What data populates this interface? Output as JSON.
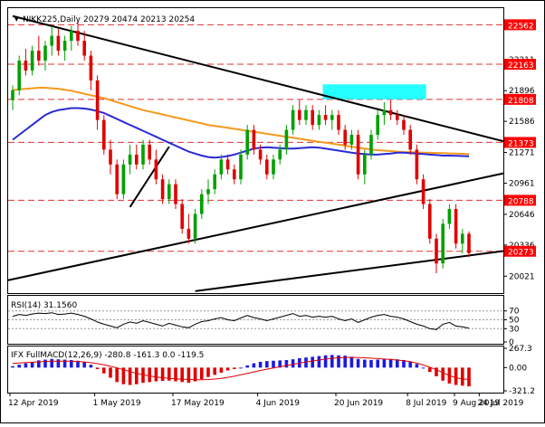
{
  "chart_data": {
    "type": "candlestick",
    "instrument_label": "NIKK225,Daily",
    "ohlc_label": "20279 20474 20213 20254",
    "price_axis_ticks": [
      22562,
      22211,
      21896,
      21586,
      21271,
      20961,
      20646,
      20336,
      20021
    ],
    "price_range": [
      19850,
      22730
    ],
    "highlighted_levels": [
      {
        "value": 22562,
        "label": "22562"
      },
      {
        "value": 22163,
        "label": "22163"
      },
      {
        "value": 21808,
        "label": "21808"
      },
      {
        "value": 21373,
        "label": "21373"
      },
      {
        "value": 20788,
        "label": "20788"
      },
      {
        "value": 20273,
        "label": "20273"
      }
    ],
    "x_labels": [
      "12 Apr 2019",
      "1 May 2019",
      "17 May 2019",
      "4 Jun 2019",
      "20 Jun 2019",
      "8 Jul 2019",
      "24 Jul 2019",
      "9 Aug 2019"
    ],
    "candles": [
      [
        21800,
        21950,
        21700,
        21900
      ],
      [
        21900,
        22250,
        21850,
        22200
      ],
      [
        22200,
        22320,
        22050,
        22100
      ],
      [
        22100,
        22350,
        22050,
        22300
      ],
      [
        22300,
        22450,
        22150,
        22200
      ],
      [
        22200,
        22400,
        22100,
        22350
      ],
      [
        22350,
        22550,
        22250,
        22450
      ],
      [
        22450,
        22520,
        22250,
        22300
      ],
      [
        22300,
        22450,
        22200,
        22400
      ],
      [
        22400,
        22550,
        22300,
        22500
      ],
      [
        22500,
        22600,
        22350,
        22400
      ],
      [
        22400,
        22500,
        22200,
        22250
      ],
      [
        22250,
        22300,
        21900,
        22000
      ],
      [
        22000,
        22050,
        21500,
        21600
      ],
      [
        21600,
        21650,
        21250,
        21300
      ],
      [
        21300,
        21400,
        21050,
        21150
      ],
      [
        21150,
        21200,
        20800,
        20850
      ],
      [
        20850,
        21200,
        20800,
        21150
      ],
      [
        21150,
        21350,
        21050,
        21250
      ],
      [
        21250,
        21350,
        21100,
        21150
      ],
      [
        21150,
        21400,
        21100,
        21350
      ],
      [
        21350,
        21400,
        21150,
        21200
      ],
      [
        21200,
        21300,
        20950,
        21000
      ],
      [
        21000,
        21050,
        20750,
        20800
      ],
      [
        20800,
        21000,
        20750,
        20950
      ],
      [
        20950,
        21000,
        20700,
        20750
      ],
      [
        20750,
        20800,
        20450,
        20500
      ],
      [
        20500,
        20650,
        20350,
        20400
      ],
      [
        20400,
        20700,
        20350,
        20650
      ],
      [
        20650,
        20900,
        20600,
        20850
      ],
      [
        20850,
        21000,
        20750,
        20900
      ],
      [
        20900,
        21100,
        20850,
        21050
      ],
      [
        21050,
        21250,
        21000,
        21200
      ],
      [
        21200,
        21250,
        21050,
        21100
      ],
      [
        21100,
        21150,
        20950,
        21000
      ],
      [
        21000,
        21300,
        20950,
        21250
      ],
      [
        21250,
        21550,
        21200,
        21500
      ],
      [
        21500,
        21550,
        21250,
        21300
      ],
      [
        21300,
        21350,
        21150,
        21200
      ],
      [
        21200,
        21250,
        21000,
        21050
      ],
      [
        21050,
        21250,
        21000,
        21200
      ],
      [
        21200,
        21350,
        21150,
        21300
      ],
      [
        21300,
        21550,
        21250,
        21500
      ],
      [
        21500,
        21750,
        21450,
        21700
      ],
      [
        21700,
        21800,
        21550,
        21600
      ],
      [
        21600,
        21750,
        21550,
        21700
      ],
      [
        21700,
        21750,
        21500,
        21550
      ],
      [
        21550,
        21700,
        21500,
        21650
      ],
      [
        21650,
        21750,
        21550,
        21600
      ],
      [
        21600,
        21700,
        21500,
        21650
      ],
      [
        21650,
        21700,
        21450,
        21500
      ],
      [
        21500,
        21550,
        21300,
        21350
      ],
      [
        21350,
        21500,
        21300,
        21450
      ],
      [
        21450,
        21500,
        21000,
        21050
      ],
      [
        21050,
        21300,
        20950,
        21250
      ],
      [
        21250,
        21500,
        21200,
        21450
      ],
      [
        21450,
        21700,
        21400,
        21650
      ],
      [
        21650,
        21780,
        21550,
        21700
      ],
      [
        21700,
        21800,
        21600,
        21650
      ],
      [
        21650,
        21700,
        21550,
        21600
      ],
      [
        21600,
        21650,
        21450,
        21500
      ],
      [
        21500,
        21550,
        21250,
        21300
      ],
      [
        21300,
        21350,
        20950,
        21000
      ],
      [
        21000,
        21050,
        20700,
        20750
      ],
      [
        20750,
        20800,
        20350,
        20400
      ],
      [
        20400,
        20450,
        20050,
        20150
      ],
      [
        20150,
        20600,
        20100,
        20550
      ],
      [
        20550,
        20750,
        20500,
        20700
      ],
      [
        20700,
        20750,
        20300,
        20350
      ],
      [
        20350,
        20500,
        20250,
        20450
      ],
      [
        20450,
        20474,
        20213,
        20254
      ]
    ],
    "ma_orange": [
      21900,
      21910,
      21915,
      21920,
      21925,
      21925,
      21920,
      21915,
      21905,
      21895,
      21880,
      21865,
      21850,
      21835,
      21820,
      21800,
      21780,
      21760,
      21740,
      21720,
      21700,
      21685,
      21670,
      21655,
      21640,
      21625,
      21610,
      21595,
      21580,
      21565,
      21550,
      21540,
      21530,
      21520,
      21510,
      21500,
      21490,
      21480,
      21470,
      21460,
      21450,
      21440,
      21430,
      21420,
      21410,
      21400,
      21390,
      21380,
      21370,
      21360,
      21350,
      21340,
      21330,
      21320,
      21310,
      21300,
      21295,
      21290,
      21285,
      21280,
      21275,
      21275,
      21272,
      21270,
      21268,
      21266,
      21264,
      21262,
      21260,
      21258,
      21256
    ],
    "ma_blue": [
      21400,
      21450,
      21500,
      21550,
      21600,
      21650,
      21680,
      21700,
      21710,
      21720,
      21720,
      21715,
      21705,
      21690,
      21670,
      21640,
      21610,
      21580,
      21550,
      21520,
      21490,
      21460,
      21430,
      21400,
      21370,
      21340,
      21310,
      21280,
      21260,
      21240,
      21225,
      21220,
      21225,
      21235,
      21250,
      21270,
      21290,
      21310,
      21320,
      21325,
      21320,
      21315,
      21310,
      21310,
      21315,
      21320,
      21325,
      21320,
      21310,
      21300,
      21290,
      21280,
      21270,
      21260,
      21255,
      21250,
      21250,
      21255,
      21260,
      21270,
      21270,
      21265,
      21260,
      21255,
      21250,
      21245,
      21240,
      21240,
      21238,
      21235,
      21232
    ],
    "rsi": {
      "label": "RSI(14) 31.1560",
      "levels": [
        "70",
        "50",
        "30",
        "0"
      ],
      "values": [
        58,
        62,
        60,
        63,
        65,
        64,
        66,
        62,
        63,
        65,
        62,
        58,
        52,
        45,
        40,
        36,
        32,
        40,
        45,
        42,
        48,
        44,
        40,
        36,
        42,
        38,
        34,
        32,
        40,
        46,
        48,
        52,
        55,
        50,
        48,
        54,
        60,
        55,
        52,
        48,
        52,
        56,
        60,
        64,
        58,
        60,
        56,
        58,
        56,
        58,
        52,
        48,
        52,
        44,
        50,
        56,
        60,
        62,
        58,
        56,
        52,
        46,
        40,
        36,
        30,
        28,
        40,
        44,
        36,
        34,
        31
      ]
    },
    "macd": {
      "label": "IFX FullMACD(12,26,9) -280.8 -161.3 0.0 -119.5",
      "ticks": [
        "267.3",
        "0.00",
        "-321.2"
      ],
      "hist": [
        20,
        40,
        60,
        80,
        100,
        110,
        120,
        115,
        110,
        105,
        95,
        80,
        40,
        -20,
        -80,
        -140,
        -200,
        -230,
        -240,
        -230,
        -210,
        -200,
        -190,
        -185,
        -180,
        -190,
        -200,
        -210,
        -190,
        -160,
        -130,
        -100,
        -70,
        -40,
        -20,
        0,
        30,
        60,
        80,
        90,
        95,
        100,
        105,
        115,
        130,
        140,
        150,
        160,
        170,
        175,
        170,
        165,
        150,
        120,
        110,
        105,
        110,
        115,
        120,
        115,
        105,
        85,
        50,
        0,
        -60,
        -120,
        -180,
        -220,
        -240,
        -250,
        -260
      ],
      "signal": [
        60,
        65,
        70,
        75,
        80,
        85,
        88,
        90,
        90,
        88,
        84,
        78,
        68,
        55,
        38,
        18,
        -5,
        -30,
        -55,
        -80,
        -100,
        -115,
        -130,
        -140,
        -148,
        -155,
        -160,
        -165,
        -168,
        -168,
        -165,
        -158,
        -148,
        -135,
        -120,
        -100,
        -80,
        -60,
        -40,
        -22,
        -5,
        12,
        28,
        45,
        62,
        78,
        92,
        105,
        118,
        128,
        136,
        140,
        142,
        140,
        136,
        130,
        124,
        118,
        112,
        105,
        96,
        82,
        62,
        36,
        5,
        -30,
        -70,
        -110,
        -140,
        -158,
        -161
      ]
    }
  }
}
